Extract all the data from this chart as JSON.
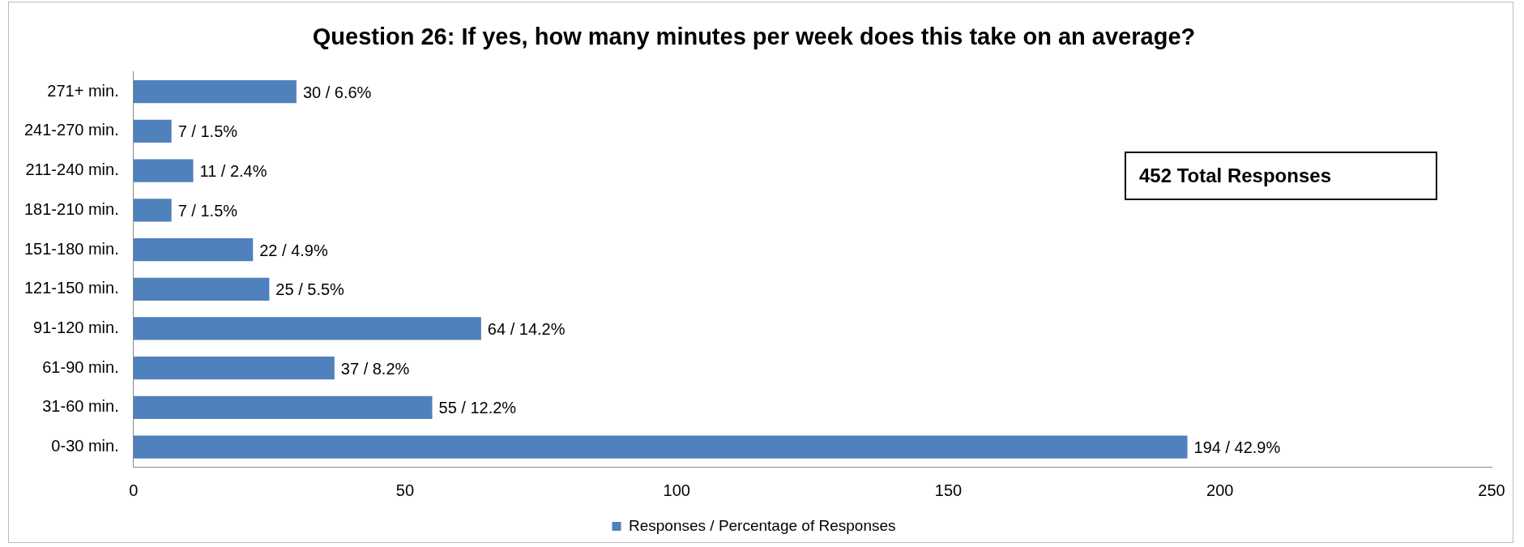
{
  "chart_data": {
    "type": "bar",
    "orientation": "horizontal",
    "title": "Question 26: If yes, how many minutes per week does this take on an average?",
    "categories": [
      "271+ min.",
      "241-270 min.",
      "211-240 min.",
      "181-210 min.",
      "151-180 min.",
      "121-150 min.",
      "91-120 min.",
      "61-90 min.",
      "31-60 min.",
      "0-30 min."
    ],
    "series": [
      {
        "name": "Responses / Percentage of Responses",
        "color": "#4f81bd",
        "values": [
          30,
          7,
          11,
          7,
          22,
          25,
          64,
          37,
          55,
          194
        ],
        "value_labels": [
          "30 / 6.6%",
          "7 / 1.5%",
          "11 / 2.4%",
          "7 / 1.5%",
          "22 / 4.9%",
          "25 / 5.5%",
          "64 / 14.2%",
          "37 / 8.2%",
          "55 / 12.2%",
          "194 / 42.9%"
        ]
      }
    ],
    "xlim": [
      0,
      250
    ],
    "xticks": [
      0,
      50,
      100,
      150,
      200,
      250
    ],
    "grid": false,
    "legend": "bottom",
    "annotations": [
      "452 Total Responses"
    ]
  }
}
